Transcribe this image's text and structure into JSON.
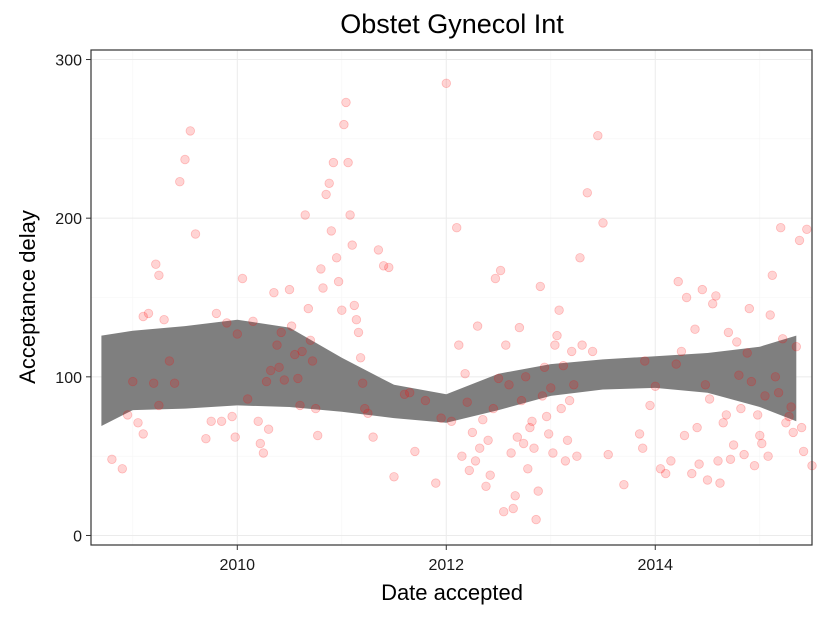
{
  "chart_data": {
    "type": "scatter",
    "title": "Obstet Gynecol Int",
    "xlabel": "Date accepted",
    "ylabel": "Acceptance delay",
    "xlim": [
      2008.6,
      2015.5
    ],
    "ylim": [
      -6,
      306
    ],
    "xticks": [
      2010,
      2012,
      2014
    ],
    "xtick_labels": [
      "2010",
      "2012",
      "2014"
    ],
    "yticks": [
      0,
      100,
      200,
      300
    ],
    "ytick_labels": [
      "0",
      "100",
      "200",
      "300"
    ],
    "grid": true,
    "colors": {
      "points": "#ff0000",
      "ribbon": "#7f7f7f",
      "grid_major": "#ebebeb",
      "grid_minor": "#f5f5f5",
      "panel_border": "#333333"
    },
    "smooth_ribbon": {
      "x": [
        2008.7,
        2009.0,
        2009.5,
        2010.0,
        2010.5,
        2011.0,
        2011.5,
        2012.0,
        2012.5,
        2013.0,
        2013.5,
        2014.0,
        2014.5,
        2015.0,
        2015.35
      ],
      "lower": [
        69,
        79,
        80,
        82,
        81,
        78,
        74,
        71,
        79,
        88,
        92,
        93,
        90,
        81,
        72
      ],
      "upper": [
        126,
        129,
        132,
        136,
        131,
        112,
        95,
        89,
        102,
        108,
        111,
        113,
        115,
        119,
        126
      ]
    },
    "points": [
      [
        2008.8,
        48
      ],
      [
        2008.9,
        42
      ],
      [
        2008.95,
        76
      ],
      [
        2009.0,
        97
      ],
      [
        2009.05,
        71
      ],
      [
        2009.1,
        64
      ],
      [
        2009.1,
        138
      ],
      [
        2009.15,
        140
      ],
      [
        2009.2,
        96
      ],
      [
        2009.22,
        171
      ],
      [
        2009.25,
        164
      ],
      [
        2009.25,
        82
      ],
      [
        2009.3,
        136
      ],
      [
        2009.35,
        110
      ],
      [
        2009.4,
        96
      ],
      [
        2009.45,
        223
      ],
      [
        2009.5,
        237
      ],
      [
        2009.55,
        255
      ],
      [
        2009.6,
        190
      ],
      [
        2009.7,
        61
      ],
      [
        2009.75,
        72
      ],
      [
        2009.8,
        140
      ],
      [
        2009.85,
        72
      ],
      [
        2009.9,
        134
      ],
      [
        2009.95,
        75
      ],
      [
        2009.98,
        62
      ],
      [
        2010.0,
        127
      ],
      [
        2010.05,
        162
      ],
      [
        2010.1,
        86
      ],
      [
        2010.15,
        135
      ],
      [
        2010.2,
        72
      ],
      [
        2010.22,
        58
      ],
      [
        2010.25,
        52
      ],
      [
        2010.28,
        97
      ],
      [
        2010.3,
        67
      ],
      [
        2010.32,
        104
      ],
      [
        2010.35,
        153
      ],
      [
        2010.38,
        120
      ],
      [
        2010.4,
        106
      ],
      [
        2010.42,
        128
      ],
      [
        2010.45,
        98
      ],
      [
        2010.5,
        155
      ],
      [
        2010.52,
        132
      ],
      [
        2010.55,
        114
      ],
      [
        2010.58,
        99
      ],
      [
        2010.6,
        82
      ],
      [
        2010.62,
        116
      ],
      [
        2010.65,
        202
      ],
      [
        2010.68,
        143
      ],
      [
        2010.7,
        123
      ],
      [
        2010.72,
        110
      ],
      [
        2010.75,
        80
      ],
      [
        2010.77,
        63
      ],
      [
        2010.8,
        168
      ],
      [
        2010.82,
        156
      ],
      [
        2010.85,
        215
      ],
      [
        2010.88,
        222
      ],
      [
        2010.9,
        192
      ],
      [
        2010.92,
        235
      ],
      [
        2010.95,
        175
      ],
      [
        2010.97,
        160
      ],
      [
        2011.0,
        142
      ],
      [
        2011.02,
        259
      ],
      [
        2011.04,
        273
      ],
      [
        2011.06,
        235
      ],
      [
        2011.08,
        202
      ],
      [
        2011.1,
        183
      ],
      [
        2011.12,
        145
      ],
      [
        2011.14,
        136
      ],
      [
        2011.16,
        128
      ],
      [
        2011.18,
        112
      ],
      [
        2011.2,
        96
      ],
      [
        2011.22,
        80
      ],
      [
        2011.25,
        77
      ],
      [
        2011.3,
        62
      ],
      [
        2011.35,
        180
      ],
      [
        2011.4,
        170
      ],
      [
        2011.45,
        169
      ],
      [
        2011.5,
        37
      ],
      [
        2011.6,
        89
      ],
      [
        2011.65,
        90
      ],
      [
        2011.7,
        53
      ],
      [
        2011.8,
        85
      ],
      [
        2011.9,
        33
      ],
      [
        2011.95,
        74
      ],
      [
        2012.0,
        285
      ],
      [
        2012.05,
        72
      ],
      [
        2012.1,
        194
      ],
      [
        2012.12,
        120
      ],
      [
        2012.15,
        50
      ],
      [
        2012.18,
        102
      ],
      [
        2012.2,
        84
      ],
      [
        2012.22,
        41
      ],
      [
        2012.25,
        65
      ],
      [
        2012.28,
        47
      ],
      [
        2012.3,
        132
      ],
      [
        2012.32,
        55
      ],
      [
        2012.35,
        73
      ],
      [
        2012.38,
        31
      ],
      [
        2012.4,
        60
      ],
      [
        2012.42,
        38
      ],
      [
        2012.45,
        80
      ],
      [
        2012.47,
        162
      ],
      [
        2012.5,
        99
      ],
      [
        2012.52,
        167
      ],
      [
        2012.55,
        15
      ],
      [
        2012.57,
        120
      ],
      [
        2012.6,
        95
      ],
      [
        2012.62,
        52
      ],
      [
        2012.64,
        17
      ],
      [
        2012.66,
        25
      ],
      [
        2012.68,
        62
      ],
      [
        2012.7,
        131
      ],
      [
        2012.72,
        85
      ],
      [
        2012.74,
        58
      ],
      [
        2012.76,
        100
      ],
      [
        2012.78,
        42
      ],
      [
        2012.8,
        68
      ],
      [
        2012.82,
        72
      ],
      [
        2012.84,
        55
      ],
      [
        2012.86,
        10
      ],
      [
        2012.88,
        28
      ],
      [
        2012.9,
        157
      ],
      [
        2012.92,
        88
      ],
      [
        2012.94,
        106
      ],
      [
        2012.96,
        75
      ],
      [
        2012.98,
        64
      ],
      [
        2013.0,
        93
      ],
      [
        2013.02,
        52
      ],
      [
        2013.04,
        120
      ],
      [
        2013.06,
        126
      ],
      [
        2013.08,
        142
      ],
      [
        2013.1,
        80
      ],
      [
        2013.12,
        107
      ],
      [
        2013.14,
        47
      ],
      [
        2013.16,
        60
      ],
      [
        2013.18,
        85
      ],
      [
        2013.2,
        116
      ],
      [
        2013.22,
        95
      ],
      [
        2013.25,
        50
      ],
      [
        2013.28,
        175
      ],
      [
        2013.3,
        120
      ],
      [
        2013.35,
        216
      ],
      [
        2013.4,
        116
      ],
      [
        2013.45,
        252
      ],
      [
        2013.5,
        197
      ],
      [
        2013.55,
        51
      ],
      [
        2013.7,
        32
      ],
      [
        2013.85,
        64
      ],
      [
        2013.88,
        55
      ],
      [
        2013.9,
        110
      ],
      [
        2013.95,
        82
      ],
      [
        2014.0,
        94
      ],
      [
        2014.05,
        42
      ],
      [
        2014.1,
        39
      ],
      [
        2014.15,
        47
      ],
      [
        2014.2,
        108
      ],
      [
        2014.22,
        160
      ],
      [
        2014.25,
        116
      ],
      [
        2014.28,
        63
      ],
      [
        2014.3,
        150
      ],
      [
        2014.35,
        39
      ],
      [
        2014.38,
        130
      ],
      [
        2014.4,
        68
      ],
      [
        2014.42,
        45
      ],
      [
        2014.45,
        155
      ],
      [
        2014.48,
        95
      ],
      [
        2014.5,
        35
      ],
      [
        2014.52,
        86
      ],
      [
        2014.55,
        146
      ],
      [
        2014.58,
        151
      ],
      [
        2014.6,
        47
      ],
      [
        2014.62,
        33
      ],
      [
        2014.65,
        71
      ],
      [
        2014.68,
        76
      ],
      [
        2014.7,
        128
      ],
      [
        2014.72,
        48
      ],
      [
        2014.75,
        57
      ],
      [
        2014.78,
        122
      ],
      [
        2014.8,
        101
      ],
      [
        2014.82,
        80
      ],
      [
        2014.85,
        51
      ],
      [
        2014.88,
        115
      ],
      [
        2014.9,
        143
      ],
      [
        2014.92,
        97
      ],
      [
        2014.95,
        44
      ],
      [
        2014.98,
        76
      ],
      [
        2015.0,
        63
      ],
      [
        2015.02,
        58
      ],
      [
        2015.05,
        88
      ],
      [
        2015.08,
        50
      ],
      [
        2015.1,
        139
      ],
      [
        2015.12,
        164
      ],
      [
        2015.15,
        100
      ],
      [
        2015.18,
        90
      ],
      [
        2015.2,
        194
      ],
      [
        2015.22,
        124
      ],
      [
        2015.25,
        71
      ],
      [
        2015.28,
        75
      ],
      [
        2015.3,
        81
      ],
      [
        2015.32,
        65
      ],
      [
        2015.35,
        119
      ],
      [
        2015.38,
        186
      ],
      [
        2015.4,
        68
      ],
      [
        2015.42,
        53
      ],
      [
        2015.45,
        193
      ],
      [
        2015.5,
        44
      ]
    ]
  }
}
